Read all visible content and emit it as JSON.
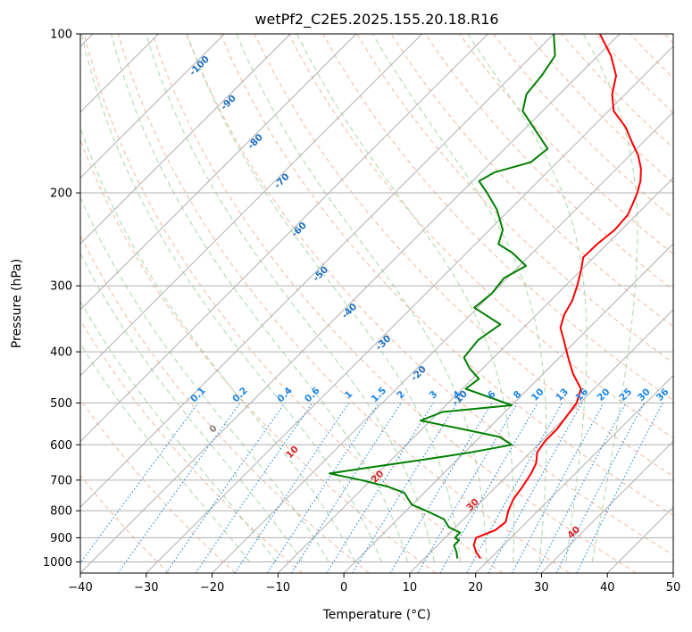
{
  "chart_data": {
    "type": "line",
    "title": "wetPf2_C2E5.2025.155.20.18.R16",
    "xlabel": "Temperature (°C)",
    "ylabel": "Pressure (hPa)",
    "xlim": [
      -40,
      50
    ],
    "ylim": [
      1050,
      100
    ],
    "y_scale": "log",
    "skew": true,
    "grid": true,
    "x_ticks": [
      -40,
      -30,
      -20,
      -10,
      0,
      10,
      20,
      30,
      40,
      50
    ],
    "y_ticks": [
      100,
      200,
      300,
      400,
      500,
      600,
      700,
      800,
      900,
      1000
    ],
    "colors": {
      "temperature": "#ff0000",
      "dewpoint": "#008000",
      "dry_adiabat": "#f4a582",
      "moist_adiabat": "#9fd49f",
      "mixing_ratio": "#1e88e5",
      "isotherm_label": "#1f6fbf",
      "dry_label": "#d62728"
    },
    "series": [
      {
        "key": "temperature",
        "points": [
          [
            985,
            18.5
          ],
          [
            960,
            17
          ],
          [
            930,
            15.5
          ],
          [
            900,
            14.7
          ],
          [
            870,
            16.5
          ],
          [
            840,
            16.8
          ],
          [
            800,
            15.5
          ],
          [
            760,
            14.5
          ],
          [
            720,
            14
          ],
          [
            680,
            13.3
          ],
          [
            650,
            12.5
          ],
          [
            620,
            11
          ],
          [
            590,
            10.5
          ],
          [
            560,
            10.5
          ],
          [
            530,
            10
          ],
          [
            500,
            9.5
          ],
          [
            470,
            8
          ],
          [
            440,
            4.5
          ],
          [
            410,
            1.3
          ],
          [
            380,
            -2
          ],
          [
            360,
            -4.4
          ],
          [
            340,
            -5.8
          ],
          [
            320,
            -6.7
          ],
          [
            300,
            -8.2
          ],
          [
            280,
            -10
          ],
          [
            265,
            -11.6
          ],
          [
            250,
            -11.5
          ],
          [
            235,
            -11
          ],
          [
            220,
            -11.3
          ],
          [
            210,
            -12.2
          ],
          [
            200,
            -13.2
          ],
          [
            190,
            -14.5
          ],
          [
            180,
            -16.3
          ],
          [
            170,
            -18.7
          ],
          [
            160,
            -21.8
          ],
          [
            150,
            -25
          ],
          [
            140,
            -29.2
          ],
          [
            130,
            -32
          ],
          [
            120,
            -34.2
          ],
          [
            110,
            -38
          ],
          [
            100,
            -43
          ]
        ]
      },
      {
        "key": "dewpoint",
        "points": [
          [
            985,
            15
          ],
          [
            960,
            14
          ],
          [
            930,
            12.5
          ],
          [
            910,
            12.5
          ],
          [
            900,
            11.5
          ],
          [
            880,
            11.5
          ],
          [
            860,
            9
          ],
          [
            830,
            7
          ],
          [
            800,
            3
          ],
          [
            780,
            0
          ],
          [
            760,
            -1.5
          ],
          [
            740,
            -3
          ],
          [
            720,
            -6.5
          ],
          [
            700,
            -11.5
          ],
          [
            680,
            -17.3
          ],
          [
            665,
            -13
          ],
          [
            640,
            -5
          ],
          [
            620,
            1
          ],
          [
            600,
            6
          ],
          [
            580,
            3
          ],
          [
            560,
            -4
          ],
          [
            540,
            -11.5
          ],
          [
            520,
            -9.5
          ],
          [
            505,
            0
          ],
          [
            490,
            -4
          ],
          [
            470,
            -9.5
          ],
          [
            450,
            -9
          ],
          [
            430,
            -12
          ],
          [
            410,
            -14.5
          ],
          [
            380,
            -15
          ],
          [
            355,
            -14
          ],
          [
            330,
            -20.5
          ],
          [
            310,
            -20
          ],
          [
            290,
            -20.5
          ],
          [
            275,
            -19
          ],
          [
            260,
            -23
          ],
          [
            250,
            -26.5
          ],
          [
            235,
            -28
          ],
          [
            215,
            -32
          ],
          [
            200,
            -36
          ],
          [
            190,
            -39
          ],
          [
            183,
            -38
          ],
          [
            175,
            -34
          ],
          [
            165,
            -33.5
          ],
          [
            150,
            -39
          ],
          [
            140,
            -43
          ],
          [
            130,
            -45
          ],
          [
            120,
            -45.5
          ],
          [
            110,
            -46.5
          ],
          [
            100,
            -50
          ]
        ]
      }
    ],
    "isotherm_labels": [
      "-100",
      "-90",
      "-80",
      "-70",
      "-60",
      "-50",
      "-40",
      "-30",
      "-20",
      "-10"
    ],
    "mixing_ratio_labels": [
      "0.1",
      "0.2",
      "0.4",
      "0.6",
      "1",
      "1.5",
      "2",
      "3",
      "4",
      "6",
      "8",
      "10",
      "13",
      "16",
      "20",
      "25",
      "30",
      "36"
    ],
    "dry_adiabat_labels": [
      "0",
      "10",
      "20",
      "30",
      "40"
    ]
  }
}
